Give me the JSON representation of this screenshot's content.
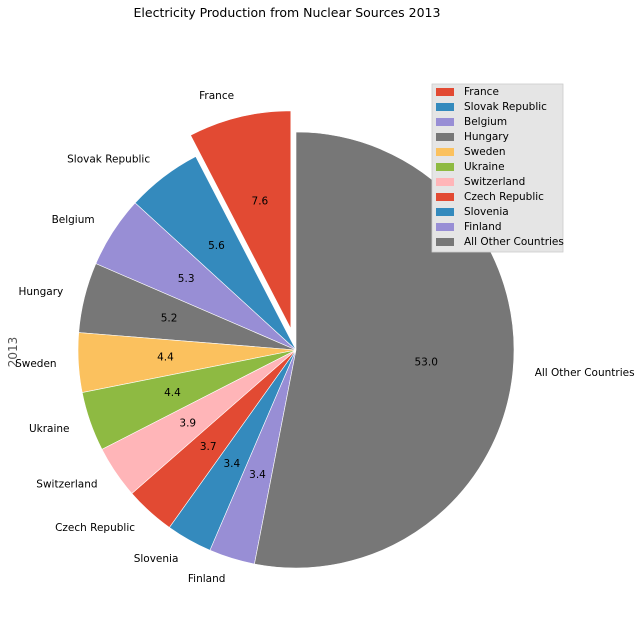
{
  "chart_data": {
    "type": "pie",
    "title": "Electricity Production from Nuclear Sources 2013",
    "ylabel": "2013",
    "explode": [
      "France"
    ],
    "legend": "top-right",
    "slices": [
      {
        "label": "France",
        "value": 7.6,
        "pct_label": "7.6",
        "color": "#E24A33"
      },
      {
        "label": "Slovak Republic",
        "value": 5.6,
        "pct_label": "5.6",
        "color": "#348ABD"
      },
      {
        "label": "Belgium",
        "value": 5.3,
        "pct_label": "5.3",
        "color": "#988ED5"
      },
      {
        "label": "Hungary",
        "value": 5.2,
        "pct_label": "5.2",
        "color": "#777777"
      },
      {
        "label": "Sweden",
        "value": 4.4,
        "pct_label": "4.4",
        "color": "#FBC15E"
      },
      {
        "label": "Ukraine",
        "value": 4.4,
        "pct_label": "4.4",
        "color": "#8EBA42"
      },
      {
        "label": "Switzerland",
        "value": 3.9,
        "pct_label": "3.9",
        "color": "#FFB5B8"
      },
      {
        "label": "Czech Republic",
        "value": 3.7,
        "pct_label": "3.7",
        "color": "#E24A33"
      },
      {
        "label": "Slovenia",
        "value": 3.4,
        "pct_label": "3.4",
        "color": "#348ABD"
      },
      {
        "label": "Finland",
        "value": 3.4,
        "pct_label": "3.4",
        "color": "#988ED5"
      },
      {
        "label": "All Other Countries",
        "value": 53.0,
        "pct_label": "53.0",
        "color": "#777777"
      }
    ]
  }
}
